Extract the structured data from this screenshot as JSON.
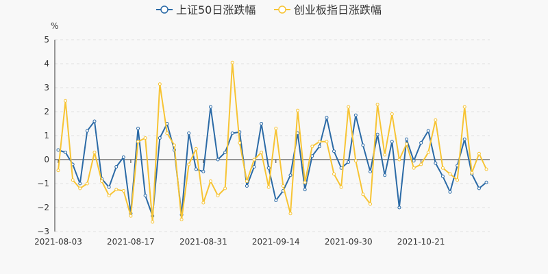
{
  "chart_data": {
    "type": "line",
    "ylabel": "%",
    "ylim": [
      -3,
      5
    ],
    "yticks": [
      "5",
      "4",
      "3",
      "2",
      "1",
      "0",
      "−1",
      "−2",
      "−3"
    ],
    "xtick_labels": [
      "2021-08-03",
      "2021-08-17",
      "2021-08-31",
      "2021-09-14",
      "2021-09-30",
      "2021-10-21"
    ],
    "xtick_index": [
      0,
      10,
      20,
      30,
      40,
      50
    ],
    "legend_position": "top",
    "grid": "horizontal-dashed",
    "series": [
      {
        "name": "上证50日涨跌幅",
        "color": "#2b6aa6",
        "values": [
          0.4,
          0.3,
          -0.2,
          -1.0,
          1.2,
          1.6,
          -0.8,
          -1.15,
          -0.3,
          0.1,
          -2.25,
          1.3,
          -1.5,
          -2.35,
          0.9,
          1.5,
          0.4,
          -2.3,
          1.1,
          -0.4,
          -0.5,
          2.2,
          0.0,
          0.3,
          1.1,
          1.15,
          -1.1,
          -0.3,
          1.5,
          -0.35,
          -1.7,
          -1.3,
          -0.65,
          1.1,
          -1.25,
          0.15,
          0.55,
          1.75,
          0.35,
          -0.35,
          -0.1,
          1.85,
          0.6,
          -0.5,
          1.05,
          -0.65,
          0.75,
          -2.0,
          0.85,
          -0.05,
          0.7,
          1.2,
          -0.15,
          -0.7,
          -1.35,
          -0.25,
          0.85,
          -0.6,
          -1.2,
          -0.95
        ]
      },
      {
        "name": "创业板指日涨跌幅",
        "color": "#f7c434",
        "values": [
          -0.45,
          2.45,
          -0.85,
          -1.2,
          -1.0,
          0.3,
          -0.9,
          -1.5,
          -1.25,
          -1.3,
          -2.35,
          0.75,
          0.9,
          -2.6,
          3.15,
          1.1,
          0.6,
          -2.5,
          -0.2,
          0.45,
          -1.8,
          -0.9,
          -1.5,
          -1.2,
          4.05,
          0.7,
          -0.9,
          0.0,
          0.3,
          -1.15,
          1.3,
          -1.1,
          -2.25,
          2.05,
          -0.95,
          0.55,
          0.75,
          0.75,
          -0.6,
          -1.15,
          2.2,
          -0.05,
          -1.45,
          -1.85,
          2.3,
          0.2,
          1.9,
          0.0,
          0.65,
          -0.35,
          -0.2,
          0.3,
          1.65,
          -0.35,
          -0.6,
          -0.85,
          2.2,
          -0.55,
          0.25,
          -0.4
        ]
      }
    ]
  }
}
